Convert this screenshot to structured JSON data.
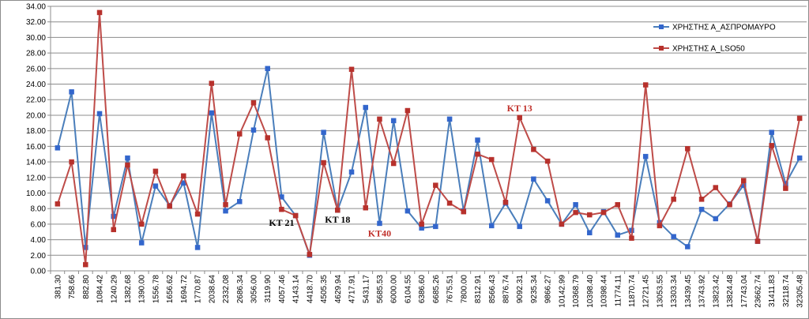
{
  "chart_data": {
    "type": "line",
    "ylim": [
      0,
      34
    ],
    "ystep": 2,
    "y_decimals": 2,
    "grid": "horizontal",
    "legend_position": "top-right",
    "categories": [
      "381.30",
      "758.66",
      "882.80",
      "1084.42",
      "1240.29",
      "1382.68",
      "1390.00",
      "1556.78",
      "1656.62",
      "1694.72",
      "1770.87",
      "2038.64",
      "2332.08",
      "2686.34",
      "3056.00",
      "3119.90",
      "4057.46",
      "4143.14",
      "4418.70",
      "4505.35",
      "4629.94",
      "4717.91",
      "5431.17",
      "5685.53",
      "6000.00",
      "6104.55",
      "6386.60",
      "6685.26",
      "7675.51",
      "7800.00",
      "8312.91",
      "8566.43",
      "8876.74",
      "9092.31",
      "9235.34",
      "9866.27",
      "10142.99",
      "10368.79",
      "10398.40",
      "10398.44",
      "11774.11",
      "11870.74",
      "12721.45",
      "13053.55",
      "13303.34",
      "13439.45",
      "13743.92",
      "13823.42",
      "13824.48",
      "17743.04",
      "23662.74",
      "31411.83",
      "32118.74",
      "32305.48"
    ],
    "series": [
      {
        "name": "ΧΡΗΣΤΗΣ Α_ΑΣΠΡΟΜΑΥΡΟ",
        "color": "#4a7ebb",
        "marker_color": "#3366cc",
        "values": [
          15.8,
          23.0,
          3.0,
          20.2,
          7.0,
          14.5,
          3.6,
          10.9,
          8.4,
          11.3,
          3.0,
          20.3,
          7.7,
          8.9,
          18.1,
          26.0,
          9.5,
          7.1,
          2.0,
          17.8,
          7.8,
          12.7,
          21.0,
          6.1,
          19.3,
          7.7,
          5.5,
          5.7,
          19.5,
          7.7,
          16.8,
          5.8,
          8.7,
          5.7,
          11.8,
          9.0,
          6.0,
          8.5,
          4.9,
          7.6,
          4.6,
          5.2,
          14.7,
          6.2,
          4.4,
          3.1,
          7.9,
          6.7,
          8.6,
          11.0,
          3.8,
          17.8,
          11.2,
          14.5
        ]
      },
      {
        "name": "ΧΡΗΣΤΗΣ Α_LSO50",
        "color": "#be4b48",
        "marker_color": "#b7312c",
        "values": [
          8.6,
          14.0,
          0.8,
          33.2,
          5.3,
          13.6,
          6.0,
          12.8,
          8.3,
          12.2,
          7.3,
          24.1,
          8.5,
          17.6,
          21.6,
          17.1,
          7.9,
          7.1,
          2.1,
          13.9,
          7.8,
          25.9,
          8.1,
          19.5,
          13.8,
          20.6,
          6.0,
          11.0,
          8.7,
          7.6,
          15.0,
          14.3,
          8.8,
          19.7,
          15.6,
          14.1,
          6.0,
          7.5,
          7.2,
          7.5,
          8.5,
          4.2,
          23.9,
          5.8,
          9.2,
          15.7,
          9.2,
          10.7,
          8.5,
          11.6,
          3.8,
          16.1,
          10.6,
          19.6
        ]
      }
    ],
    "annotations": [
      {
        "text": "KT 21",
        "x_index": 16,
        "y": 5.8,
        "color": "#000000"
      },
      {
        "text": "KT 18",
        "x_index": 20,
        "y": 6.2,
        "color": "#000000"
      },
      {
        "text": "KT40",
        "x_index": 23,
        "y": 4.4,
        "color": "#c0302a"
      },
      {
        "text": "KT 13",
        "x_index": 33,
        "y": 20.5,
        "color": "#c0302a"
      }
    ]
  }
}
